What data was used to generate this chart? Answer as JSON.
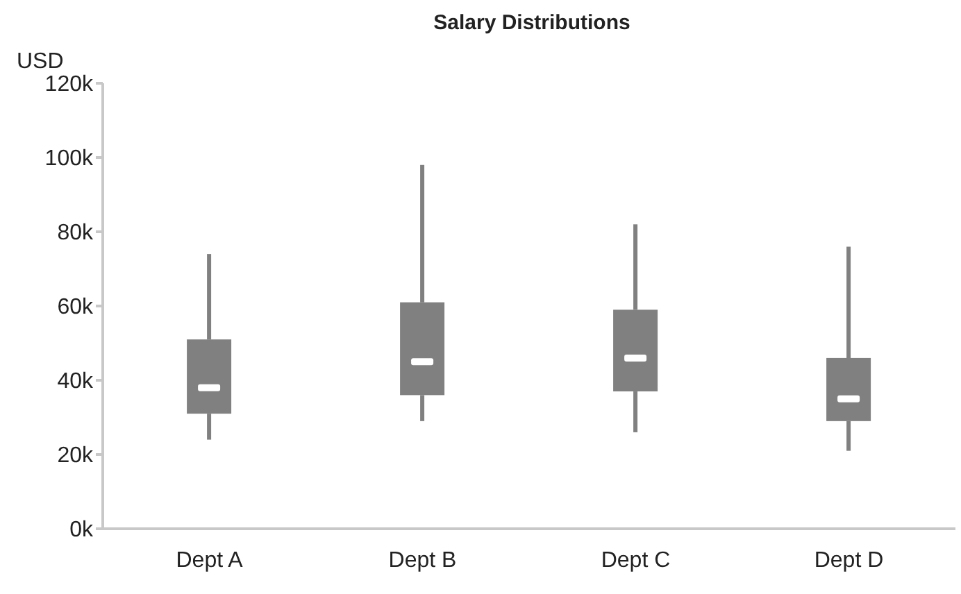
{
  "chart_data": {
    "type": "box",
    "title": "Salary Distributions",
    "ylabel": "USD",
    "categories": [
      "Dept A",
      "Dept B",
      "Dept C",
      "Dept D"
    ],
    "boxes": [
      {
        "low": 24000,
        "q1": 31000,
        "median": 38000,
        "q3": 51000,
        "high": 74000
      },
      {
        "low": 29000,
        "q1": 36000,
        "median": 45000,
        "q3": 61000,
        "high": 98000
      },
      {
        "low": 26000,
        "q1": 37000,
        "median": 46000,
        "q3": 59000,
        "high": 82000
      },
      {
        "low": 21000,
        "q1": 29000,
        "median": 35000,
        "q3": 46000,
        "high": 76000
      }
    ],
    "color": "#808080",
    "ylim": [
      0,
      120000
    ],
    "yticks": [
      {
        "value": 0,
        "label": "0k"
      },
      {
        "value": 20000,
        "label": "20k"
      },
      {
        "value": 40000,
        "label": "40k"
      },
      {
        "value": 60000,
        "label": "60k"
      },
      {
        "value": 80000,
        "label": "80k"
      },
      {
        "value": 100000,
        "label": "100k"
      },
      {
        "value": 120000,
        "label": "120k"
      }
    ],
    "grid": false
  }
}
